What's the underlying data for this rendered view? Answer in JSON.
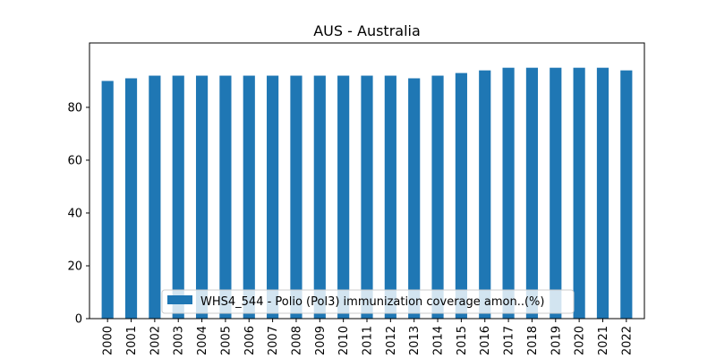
{
  "chart_data": {
    "type": "bar",
    "title": "AUS - Australia",
    "xlabel": "",
    "ylabel": "",
    "categories": [
      "2000",
      "2001",
      "2002",
      "2003",
      "2004",
      "2005",
      "2006",
      "2007",
      "2008",
      "2009",
      "2010",
      "2011",
      "2012",
      "2013",
      "2014",
      "2015",
      "2016",
      "2017",
      "2018",
      "2019",
      "2020",
      "2021",
      "2022"
    ],
    "series": [
      {
        "name": "WHS4_544 - Polio (Pol3) immunization coverage amon..(%)",
        "values": [
          90,
          91,
          92,
          92,
          92,
          92,
          92,
          92,
          92,
          92,
          92,
          92,
          92,
          91,
          92,
          93,
          94,
          95,
          95,
          95,
          95,
          95,
          94
        ]
      }
    ],
    "ylim": [
      0,
      100
    ],
    "yticks": [
      0,
      20,
      40,
      60,
      80
    ],
    "grid": false,
    "legend": "lower center",
    "colors": {
      "bar": "#1f77b4"
    }
  }
}
